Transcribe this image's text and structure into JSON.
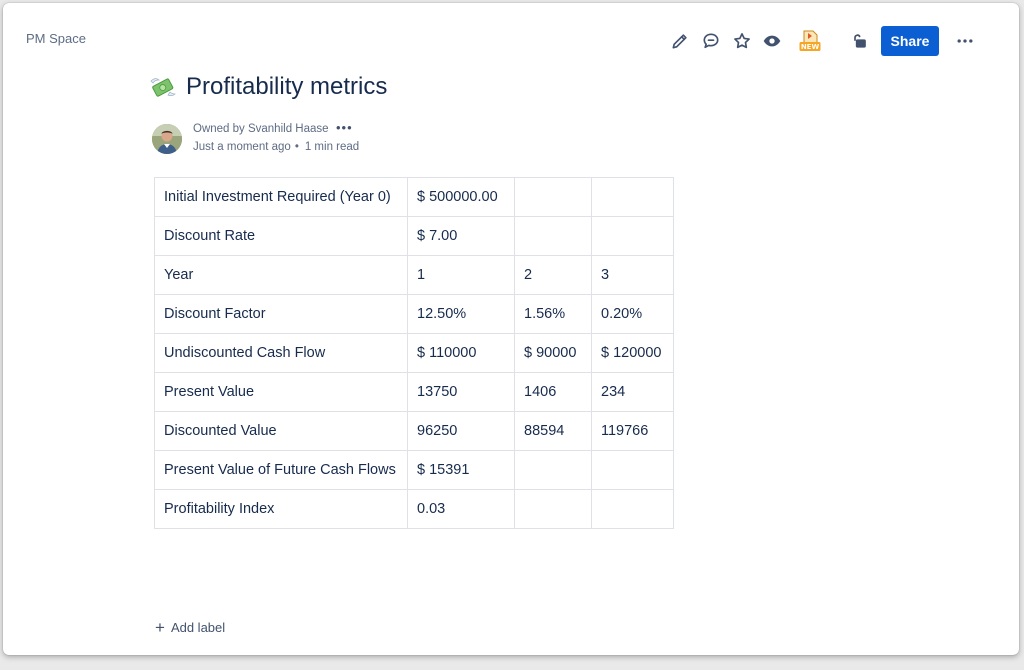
{
  "header": {
    "space_name": "PM Space",
    "share_label": "Share",
    "icons": [
      "pencil-icon",
      "comment-icon",
      "star-icon",
      "eye-icon",
      "new-badge-icon",
      "unlock-icon",
      "more-icon"
    ]
  },
  "page": {
    "title": "Profitability metrics",
    "title_emoji": "money-with-wings-icon"
  },
  "byline": {
    "owner": "Owned by Svanhild Haase",
    "more": "•••",
    "updated": "Just a moment ago",
    "separator": "•",
    "read_time": "1 min read"
  },
  "table": {
    "rows": [
      [
        "Initial Investment Required (Year 0)",
        "$ 500000.00",
        "",
        ""
      ],
      [
        "Discount Rate",
        "$ 7.00",
        "",
        ""
      ],
      [
        "Year",
        "1",
        "2",
        "3"
      ],
      [
        "Discount Factor",
        "12.50%",
        "1.56%",
        "0.20%"
      ],
      [
        "Undiscounted Cash Flow",
        "$ 110000",
        "$ 90000",
        "$ 120000"
      ],
      [
        "Present Value",
        "13750",
        "1406",
        "234"
      ],
      [
        "Discounted Value",
        "96250",
        "88594",
        "119766"
      ],
      [
        "Present Value of Future Cash Flows",
        "$ 15391",
        "",
        ""
      ],
      [
        "Profitability Index",
        "0.03",
        "",
        ""
      ]
    ]
  },
  "footer": {
    "add_label": "Add label"
  },
  "colors": {
    "accent": "#0c5fd3",
    "text": "#172b4d",
    "subtle_text": "#5e6c84",
    "border": "#dfe1e6"
  }
}
